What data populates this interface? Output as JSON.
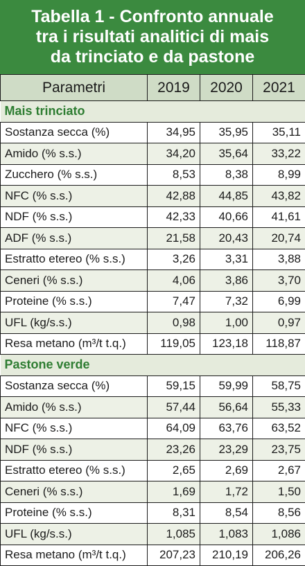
{
  "title": {
    "line1": "Tabella 1 - Confronto annuale",
    "line2": "tra i risultati analitici di mais",
    "line3": "da trinciato e da pastone"
  },
  "header": {
    "param": "Parametri",
    "years": [
      "2019",
      "2020",
      "2021"
    ]
  },
  "sections": [
    {
      "name": "Mais trinciato",
      "rows": [
        {
          "label": "Sostanza secca (%)",
          "values": [
            "34,95",
            "35,95",
            "35,11"
          ]
        },
        {
          "label": "Amido (% s.s.)",
          "values": [
            "34,20",
            "35,64",
            "33,22"
          ]
        },
        {
          "label": "Zucchero (% s.s.)",
          "values": [
            "8,53",
            "8,38",
            "8,99"
          ]
        },
        {
          "label": "NFC (% s.s.)",
          "values": [
            "42,88",
            "44,85",
            "43,82"
          ]
        },
        {
          "label": "NDF (% s.s.)",
          "values": [
            "42,33",
            "40,66",
            "41,61"
          ]
        },
        {
          "label": "ADF (% s.s.)",
          "values": [
            "21,58",
            "20,43",
            "20,74"
          ]
        },
        {
          "label": "Estratto etereo (% s.s.)",
          "values": [
            "3,26",
            "3,31",
            "3,88"
          ]
        },
        {
          "label": "Ceneri (% s.s.)",
          "values": [
            "4,06",
            "3,86",
            "3,70"
          ]
        },
        {
          "label": "Proteine (% s.s.)",
          "values": [
            "7,47",
            "7,32",
            "6,99"
          ]
        },
        {
          "label": "UFL (kg/s.s.)",
          "values": [
            "0,98",
            "1,00",
            "0,97"
          ]
        },
        {
          "label": "Resa metano (m³/t t.q.)",
          "values": [
            "119,05",
            "123,18",
            "118,87"
          ]
        }
      ]
    },
    {
      "name": "Pastone verde",
      "rows": [
        {
          "label": "Sostanza secca (%)",
          "values": [
            "59,15",
            "59,99",
            "58,75"
          ]
        },
        {
          "label": "Amido (% s.s.)",
          "values": [
            "57,44",
            "56,64",
            "55,33"
          ]
        },
        {
          "label": "NFC (% s.s.)",
          "values": [
            "64,09",
            "63,76",
            "63,52"
          ]
        },
        {
          "label": "NDF (% s.s.)",
          "values": [
            "23,26",
            "23,29",
            "23,75"
          ]
        },
        {
          "label": "Estratto etereo (% s.s.)",
          "values": [
            "2,65",
            "2,69",
            "2,67"
          ]
        },
        {
          "label": "Ceneri (% s.s.)",
          "values": [
            "1,69",
            "1,72",
            "1,50"
          ]
        },
        {
          "label": "Proteine (% s.s.)",
          "values": [
            "8,31",
            "8,54",
            "8,56"
          ]
        },
        {
          "label": "UFL (kg/s.s.)",
          "values": [
            "1,085",
            "1,083",
            "1,086"
          ]
        },
        {
          "label": "Resa metano (m³/t t.q.)",
          "values": [
            "207,23",
            "210,19",
            "206,26"
          ]
        }
      ]
    }
  ]
}
